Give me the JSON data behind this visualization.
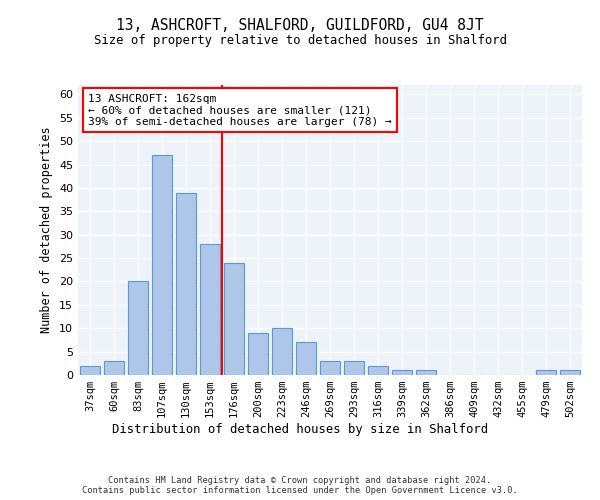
{
  "title": "13, ASHCROFT, SHALFORD, GUILDFORD, GU4 8JT",
  "subtitle": "Size of property relative to detached houses in Shalford",
  "xlabel": "Distribution of detached houses by size in Shalford",
  "ylabel": "Number of detached properties",
  "bins": [
    "37sqm",
    "60sqm",
    "83sqm",
    "107sqm",
    "130sqm",
    "153sqm",
    "176sqm",
    "200sqm",
    "223sqm",
    "246sqm",
    "269sqm",
    "293sqm",
    "316sqm",
    "339sqm",
    "362sqm",
    "386sqm",
    "409sqm",
    "432sqm",
    "455sqm",
    "479sqm",
    "502sqm"
  ],
  "values": [
    2,
    3,
    20,
    47,
    39,
    28,
    24,
    9,
    10,
    7,
    3,
    3,
    2,
    1,
    1,
    0,
    0,
    0,
    0,
    1,
    1
  ],
  "bar_color": "#aec6e8",
  "bar_edge_color": "#5b9bd5",
  "vline_x": 5.5,
  "vline_color": "red",
  "ylim": [
    0,
    62
  ],
  "yticks": [
    0,
    5,
    10,
    15,
    20,
    25,
    30,
    35,
    40,
    45,
    50,
    55,
    60
  ],
  "annotation_title": "13 ASHCROFT: 162sqm",
  "annotation_line1": "← 60% of detached houses are smaller (121)",
  "annotation_line2": "39% of semi-detached houses are larger (78) →",
  "annotation_box_color": "#ffffff",
  "annotation_box_edge": "red",
  "bg_color": "#eef2f9",
  "grid_color": "#ffffff",
  "footer1": "Contains HM Land Registry data © Crown copyright and database right 2024.",
  "footer2": "Contains public sector information licensed under the Open Government Licence v3.0."
}
